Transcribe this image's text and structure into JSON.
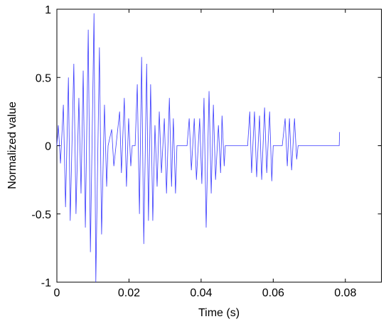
{
  "chart_data": {
    "type": "line",
    "xlabel": "Time (s)",
    "ylabel": "Normalized value",
    "xlim": [
      0,
      0.09
    ],
    "ylim": [
      -1,
      1
    ],
    "xticks": [
      0,
      0.02,
      0.04,
      0.06,
      0.08
    ],
    "yticks": [
      -1,
      -0.5,
      0,
      0.5,
      1
    ],
    "grid": false,
    "series": [
      {
        "color": "#3a3aff",
        "x": [
          0,
          0.0004,
          0.001,
          0.0018,
          0.0024,
          0.0032,
          0.0037,
          0.0047,
          0.0053,
          0.0061,
          0.0067,
          0.0073,
          0.0079,
          0.0087,
          0.0093,
          0.0103,
          0.0108,
          0.0118,
          0.0124,
          0.0132,
          0.0138,
          0.0142,
          0.0152,
          0.0158,
          0.0164,
          0.0174,
          0.0179,
          0.0187,
          0.0193,
          0.0199,
          0.0205,
          0.0209,
          0.0217,
          0.0223,
          0.0229,
          0.0235,
          0.0241,
          0.0249,
          0.0254,
          0.026,
          0.0266,
          0.0272,
          0.0278,
          0.0284,
          0.029,
          0.0298,
          0.0304,
          0.0312,
          0.0318,
          0.0323,
          0.0329,
          0.0333,
          0.0361,
          0.0367,
          0.0373,
          0.0381,
          0.0387,
          0.0396,
          0.0402,
          0.0408,
          0.0414,
          0.0422,
          0.0428,
          0.0434,
          0.044,
          0.0448,
          0.0454,
          0.0458,
          0.0464,
          0.0467,
          0.0529,
          0.0535,
          0.054,
          0.0548,
          0.0554,
          0.0562,
          0.0568,
          0.0576,
          0.0582,
          0.059,
          0.0596,
          0.06,
          0.0625,
          0.0633,
          0.0639,
          0.0645,
          0.0651,
          0.0659,
          0.0665,
          0.0669,
          0.0783,
          0.0784
        ],
        "values": [
          0,
          0.15,
          -0.13,
          0.3,
          -0.45,
          0.5,
          -0.55,
          0.6,
          -0.5,
          0.35,
          -0.35,
          0.55,
          -0.6,
          0.85,
          -0.78,
          0.97,
          -1.0,
          0.72,
          -0.65,
          0.3,
          -0.3,
          0,
          0.12,
          -0.15,
          0,
          0.25,
          -0.2,
          0.35,
          -0.3,
          0.2,
          -0.15,
          0,
          0,
          0.45,
          -0.5,
          0.65,
          -0.72,
          0.6,
          -0.55,
          0.45,
          -0.55,
          0.15,
          -0.3,
          0.25,
          -0.2,
          0.2,
          -0.35,
          0.35,
          -0.3,
          0.2,
          -0.35,
          0,
          0,
          0.2,
          -0.18,
          0.2,
          -0.25,
          0.2,
          -0.28,
          0.35,
          -0.6,
          0.4,
          -0.35,
          0.3,
          -0.25,
          0.15,
          -0.2,
          0.22,
          -0.15,
          0,
          0,
          0.25,
          -0.2,
          0.25,
          -0.23,
          0.22,
          -0.25,
          0.28,
          -0.2,
          0.25,
          -0.26,
          0,
          0,
          0.2,
          -0.15,
          0.2,
          -0.18,
          0.2,
          -0.1,
          0,
          0,
          0.1
        ]
      }
    ]
  }
}
